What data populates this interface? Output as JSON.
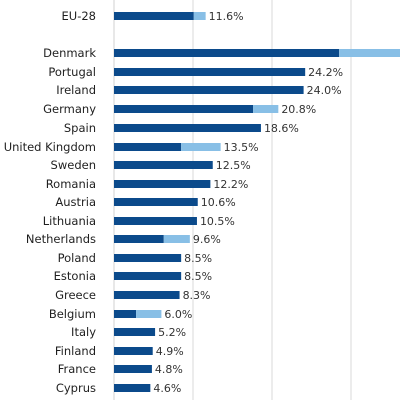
{
  "chart_data": {
    "type": "bar",
    "orientation": "horizontal",
    "stacked": true,
    "categories": [
      "EU-28",
      "Denmark",
      "Portugal",
      "Ireland",
      "Germany",
      "Spain",
      "United Kingdom",
      "Sweden",
      "Romania",
      "Austria",
      "Lithuania",
      "Netherlands",
      "Poland",
      "Estonia",
      "Greece",
      "Belgium",
      "Italy",
      "Finland",
      "France",
      "Cyprus"
    ],
    "total_labels": [
      "11.6%",
      "",
      "24.2%",
      "24.0%",
      "20.8%",
      "18.6%",
      "13.5%",
      "12.5%",
      "12.2%",
      "10.6%",
      "10.5%",
      "9.6%",
      "8.5%",
      "8.5%",
      "8.3%",
      "6.0%",
      "5.2%",
      "4.9%",
      "4.8%",
      "4.6%"
    ],
    "series": [
      {
        "values": [
          10.1,
          28.5,
          24.2,
          24.0,
          17.6,
          18.6,
          8.5,
          12.5,
          12.2,
          10.6,
          10.5,
          6.3,
          8.5,
          8.5,
          8.3,
          2.8,
          5.2,
          4.9,
          4.8,
          4.6
        ],
        "color": "#0b4a8b"
      },
      {
        "values": [
          1.5,
          7.8,
          0,
          0,
          3.2,
          0,
          5.0,
          0,
          0,
          0,
          0,
          3.3,
          0,
          0,
          0,
          3.2,
          0,
          0,
          0,
          0
        ],
        "color": "#88bfe6"
      }
    ],
    "xlim": [
      0,
      36
    ],
    "grid": true,
    "legend": "none"
  }
}
